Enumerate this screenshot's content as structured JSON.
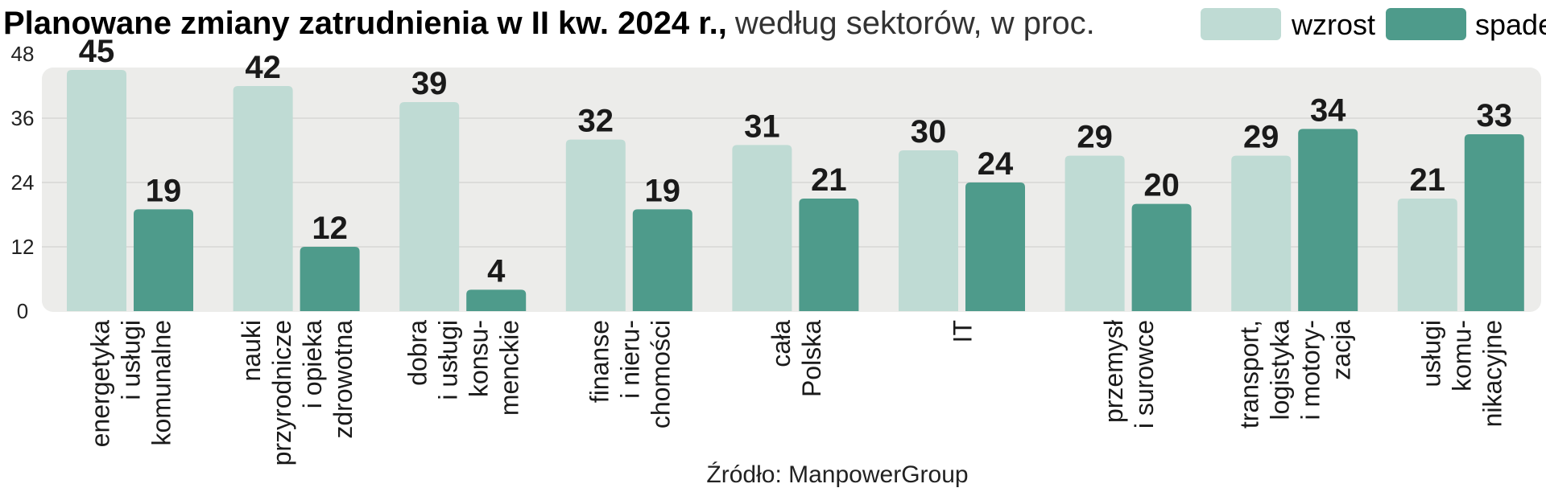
{
  "chart_data": {
    "type": "bar",
    "title": "Planowane zmiany zatrudnienia w II kw. 2024 r.,",
    "subtitle": "według sektorów, w proc.",
    "source": "Źródło: ManpowerGroup",
    "ylim": [
      0,
      48
    ],
    "yticks": [
      0,
      12,
      24,
      36,
      48
    ],
    "grid": true,
    "legend_position": "top-right",
    "categories": [
      [
        "energetyka",
        "i usługi",
        "komunalne"
      ],
      [
        "nauki",
        "przyrodnicze",
        "i opieka",
        "zdrowotna"
      ],
      [
        "dobra",
        "i usługi",
        "konsu-",
        "menckie"
      ],
      [
        "finanse",
        "i nieru-",
        "chomości"
      ],
      [
        "cała",
        "Polska"
      ],
      [
        "IT"
      ],
      [
        "przemysł",
        "i surowce"
      ],
      [
        "transport,",
        "logistyka",
        "i motory-",
        "zacja"
      ],
      [
        "usługi",
        "komu-",
        "nikacyjne"
      ]
    ],
    "series": [
      {
        "name": "wzrost",
        "color": "#bfdbd4",
        "values": [
          45,
          42,
          39,
          32,
          31,
          30,
          29,
          29,
          21
        ]
      },
      {
        "name": "spadek",
        "color": "#4e9b8b",
        "values": [
          19,
          12,
          4,
          19,
          21,
          24,
          20,
          34,
          33
        ]
      }
    ],
    "background_color": "#ececea",
    "gridline_color": "#d6d6d4"
  }
}
